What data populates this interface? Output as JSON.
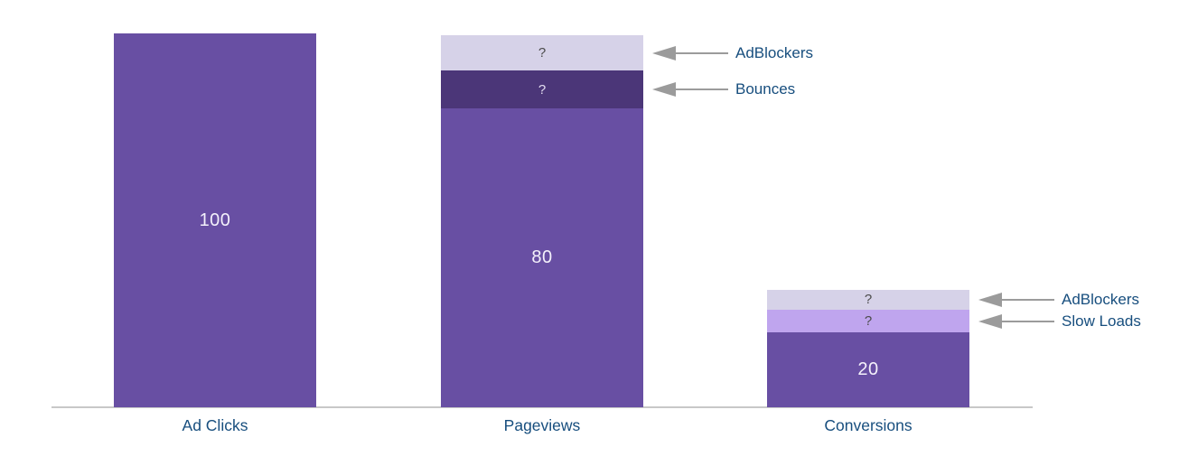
{
  "chart_data": {
    "type": "bar",
    "subtype": "stacked-funnel",
    "title": "",
    "xlabel": "",
    "ylabel": "",
    "ylim": [
      0,
      100
    ],
    "grid": false,
    "legend": false,
    "categories": [
      "Ad Clicks",
      "Pageviews",
      "Conversions"
    ],
    "bars": [
      {
        "category": "Ad Clicks",
        "segments": [
          {
            "name": "Ad Clicks",
            "value": 100,
            "label": "100",
            "color": "#684fa3",
            "text_color": "#f4f1fb"
          }
        ]
      },
      {
        "category": "Pageviews",
        "segments": [
          {
            "name": "Pageviews",
            "value": 80,
            "label": "80",
            "color": "#684fa3",
            "text_color": "#f4f1fb"
          },
          {
            "name": "Bounces",
            "value": 10,
            "label": "?",
            "color": "#4b3678",
            "text_color": "#e3ddf0",
            "annotation": "Bounces"
          },
          {
            "name": "AdBlockers",
            "value": 9.5,
            "label": "?",
            "color": "#d6d2e8",
            "text_color": "#4b4b4b",
            "annotation": "AdBlockers"
          }
        ]
      },
      {
        "category": "Conversions",
        "segments": [
          {
            "name": "Conversions",
            "value": 20,
            "label": "20",
            "color": "#684fa3",
            "text_color": "#f4f1fb"
          },
          {
            "name": "Slow Loads",
            "value": 6,
            "label": "?",
            "color": "#bfa5ee",
            "text_color": "#4b4b4b",
            "annotation": "Slow Loads"
          },
          {
            "name": "AdBlockers",
            "value": 5.5,
            "label": "?",
            "color": "#d6d2e8",
            "text_color": "#4b4b4b",
            "annotation": "AdBlockers"
          }
        ]
      }
    ],
    "colors": {
      "bar_main": "#684fa3",
      "bar_dark": "#4b3678",
      "bar_light_lavender": "#d6d2e8",
      "bar_light_violet": "#bfa5ee",
      "label_navy": "#174e7e",
      "arrow_gray": "#9b9b9b",
      "axis_gray": "#c8c8c8",
      "value_text_light": "#f4f1fb",
      "value_text_dark": "#4b4b4b"
    }
  }
}
